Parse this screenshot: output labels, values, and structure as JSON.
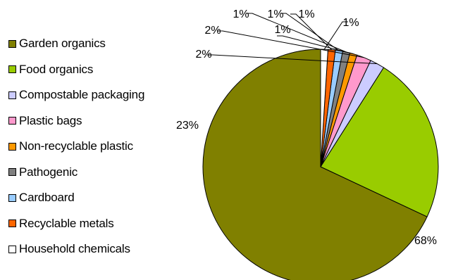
{
  "chart_data": {
    "type": "pie",
    "slices": [
      {
        "label": "Garden organics",
        "value": 68,
        "display": "68%",
        "color": "#808000"
      },
      {
        "label": "Food organics",
        "value": 23,
        "display": "23%",
        "color": "#99CC00"
      },
      {
        "label": "Compostable packaging",
        "value": 2,
        "display": "2%",
        "color": "#CCCCFF"
      },
      {
        "label": "Plastic bags",
        "value": 2,
        "display": "2%",
        "color": "#FF99CC"
      },
      {
        "label": "Non-recyclable plastic",
        "value": 1,
        "display": "1%",
        "color": "#FF9900"
      },
      {
        "label": "Pathogenic",
        "value": 1,
        "display": "1%",
        "color": "#808080"
      },
      {
        "label": "Cardboard",
        "value": 1,
        "display": "1%",
        "color": "#99CCFF"
      },
      {
        "label": "Recyclable metals",
        "value": 1,
        "display": "1%",
        "color": "#FF6600"
      },
      {
        "label": "Household chemicals",
        "value": 1,
        "display": "1%",
        "color": "#FFFFFF"
      }
    ],
    "legend_position": "left"
  }
}
